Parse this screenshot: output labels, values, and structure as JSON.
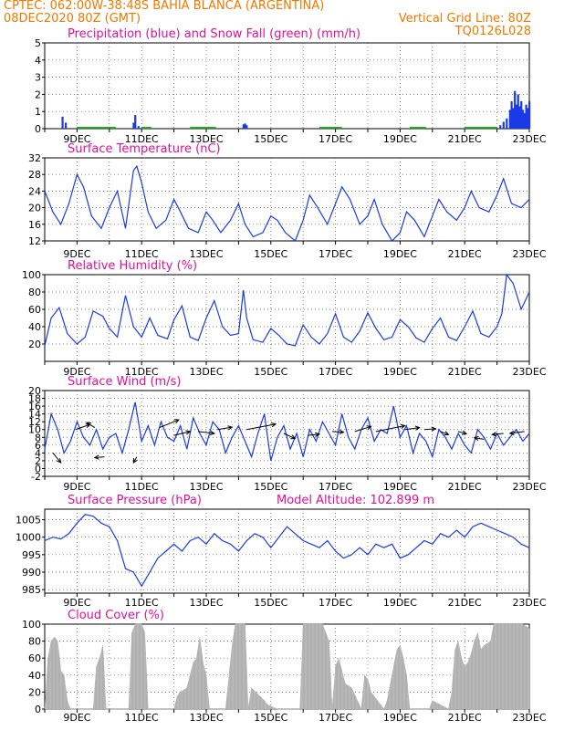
{
  "header": {
    "line1": "CPTEC:  062:00W-38:48S  BAHIA BLANCA (ARGENTINA)",
    "line2": "08DEC2020 80Z (GMT)",
    "grid_note": "Vertical Grid Line: 80Z",
    "code": "TQ0126L028"
  },
  "colors": {
    "orange": "#f07800",
    "magenta": "#e0109a",
    "blue": "#1a3ae8",
    "green": "#19a319",
    "gray": "#b0b0b0",
    "grid": "#555555"
  },
  "chart_data": [
    {
      "type": "bar",
      "title": "Precipitation (blue) and Snow Fall (green) (mm/h)",
      "x_range": [
        8.0,
        23.0
      ],
      "x_ticks": [
        "9DEC",
        "11DEC",
        "13DEC",
        "15DEC",
        "17DEC",
        "19DEC",
        "21DEC",
        "23DEC"
      ],
      "ylim": [
        0,
        5
      ],
      "y_ticks": [
        0,
        1,
        2,
        3,
        4,
        5
      ],
      "series": [
        {
          "name": "Precipitation",
          "color": "blue",
          "x": [
            8.55,
            8.65,
            9.15,
            10.75,
            10.8,
            10.9,
            13.1,
            14.15,
            14.2,
            14.25,
            22.1,
            22.2,
            22.3,
            22.4,
            22.45,
            22.5,
            22.55,
            22.6,
            22.65,
            22.7,
            22.75,
            22.8,
            22.85,
            22.9,
            22.95,
            23.0
          ],
          "values": [
            0.7,
            0.35,
            0.1,
            0.35,
            0.8,
            0.15,
            0.1,
            0.25,
            0.3,
            0.2,
            0.2,
            0.4,
            0.6,
            1.1,
            1.6,
            1.2,
            2.2,
            1.4,
            2.0,
            1.3,
            1.6,
            1.1,
            0.9,
            1.4,
            1.2,
            1.6
          ]
        },
        {
          "name": "Snow Fall",
          "color": "green",
          "x_ranges": [
            [
              9.0,
              10.2
            ],
            [
              11.0,
              11.3
            ],
            [
              12.5,
              13.3
            ],
            [
              16.5,
              17.2
            ],
            [
              19.3,
              19.8
            ],
            [
              21.0,
              22.0
            ]
          ],
          "value": 0.05
        }
      ]
    },
    {
      "type": "line",
      "title": "Surface Temperature (nC)",
      "x_range": [
        8.0,
        23.0
      ],
      "x_ticks": [
        "9DEC",
        "11DEC",
        "13DEC",
        "15DEC",
        "17DEC",
        "19DEC",
        "21DEC",
        "23DEC"
      ],
      "ylim": [
        12,
        32
      ],
      "y_ticks": [
        12,
        16,
        20,
        24,
        28,
        32
      ],
      "series": [
        {
          "name": "Surface Temperature",
          "x": [
            8.0,
            8.25,
            8.5,
            8.75,
            9.0,
            9.2,
            9.45,
            9.75,
            10.0,
            10.25,
            10.5,
            10.75,
            10.85,
            11.0,
            11.2,
            11.45,
            11.75,
            12.0,
            12.2,
            12.45,
            12.75,
            13.0,
            13.2,
            13.45,
            13.75,
            14.0,
            14.2,
            14.45,
            14.75,
            15.0,
            15.2,
            15.45,
            15.75,
            16.0,
            16.2,
            16.45,
            16.75,
            17.0,
            17.2,
            17.45,
            17.75,
            18.0,
            18.2,
            18.45,
            18.75,
            19.0,
            19.2,
            19.45,
            19.75,
            20.0,
            20.2,
            20.45,
            20.75,
            21.0,
            21.2,
            21.45,
            21.75,
            22.0,
            22.2,
            22.45,
            22.75,
            23.0
          ],
          "values": [
            24,
            19,
            16,
            21,
            28,
            25,
            18,
            15,
            20,
            24,
            15,
            29,
            30,
            26,
            19,
            15,
            17,
            22,
            19,
            15,
            14,
            19,
            17,
            14,
            17,
            21,
            16,
            13,
            14,
            18,
            17,
            14,
            12,
            17,
            23,
            20,
            16,
            21,
            25,
            22,
            16,
            18,
            22,
            16,
            12,
            14,
            19,
            17,
            13,
            18,
            22,
            19,
            17,
            20,
            24,
            20,
            19,
            23,
            27,
            21,
            20,
            22
          ]
        }
      ]
    },
    {
      "type": "line",
      "title": "Relative Humidity (%)",
      "x_range": [
        8.0,
        23.0
      ],
      "x_ticks": [
        "9DEC",
        "11DEC",
        "13DEC",
        "15DEC",
        "17DEC",
        "19DEC",
        "21DEC",
        "23DEC"
      ],
      "ylim": [
        0,
        100
      ],
      "y_ticks": [
        20,
        40,
        60,
        80,
        100
      ],
      "series": [
        {
          "name": "Relative Humidity",
          "x": [
            8.0,
            8.2,
            8.45,
            8.7,
            9.0,
            9.25,
            9.5,
            9.8,
            10.0,
            10.25,
            10.5,
            10.75,
            11.0,
            11.25,
            11.5,
            11.8,
            12.0,
            12.25,
            12.5,
            12.75,
            13.0,
            13.25,
            13.5,
            13.75,
            14.0,
            14.15,
            14.25,
            14.45,
            14.75,
            15.0,
            15.25,
            15.5,
            15.75,
            16.0,
            16.25,
            16.5,
            16.75,
            17.0,
            17.25,
            17.5,
            17.75,
            18.0,
            18.25,
            18.5,
            18.75,
            19.0,
            19.25,
            19.5,
            19.75,
            20.0,
            20.25,
            20.5,
            20.75,
            21.0,
            21.25,
            21.5,
            21.75,
            22.0,
            22.15,
            22.3,
            22.5,
            22.75,
            23.0
          ],
          "values": [
            18,
            50,
            62,
            32,
            20,
            28,
            58,
            52,
            38,
            28,
            76,
            40,
            28,
            50,
            30,
            26,
            48,
            64,
            28,
            24,
            50,
            70,
            40,
            30,
            32,
            82,
            50,
            25,
            22,
            38,
            30,
            20,
            18,
            42,
            28,
            20,
            32,
            55,
            28,
            22,
            35,
            56,
            38,
            25,
            28,
            48,
            40,
            27,
            22,
            38,
            50,
            28,
            24,
            40,
            58,
            32,
            28,
            40,
            55,
            100,
            90,
            60,
            80
          ]
        }
      ]
    },
    {
      "type": "line",
      "title": "Surface Wind (m/s)",
      "x_range": [
        8.0,
        23.0
      ],
      "x_ticks": [
        "9DEC",
        "11DEC",
        "13DEC",
        "15DEC",
        "17DEC",
        "19DEC",
        "21DEC",
        "23DEC"
      ],
      "ylim": [
        -2,
        20
      ],
      "y_ticks": [
        -2,
        0,
        2,
        4,
        6,
        8,
        10,
        12,
        14,
        16,
        18,
        20
      ],
      "series": [
        {
          "name": "Surface Wind",
          "x": [
            8.0,
            8.2,
            8.4,
            8.6,
            8.8,
            9.0,
            9.2,
            9.4,
            9.6,
            9.8,
            10.0,
            10.2,
            10.4,
            10.6,
            10.8,
            11.0,
            11.2,
            11.4,
            11.6,
            11.8,
            12.0,
            12.2,
            12.4,
            12.6,
            12.8,
            13.0,
            13.2,
            13.4,
            13.6,
            13.8,
            14.0,
            14.2,
            14.4,
            14.6,
            14.8,
            15.0,
            15.2,
            15.4,
            15.6,
            15.8,
            16.0,
            16.2,
            16.4,
            16.6,
            16.8,
            17.0,
            17.2,
            17.4,
            17.6,
            17.8,
            18.0,
            18.2,
            18.4,
            18.6,
            18.8,
            19.0,
            19.2,
            19.4,
            19.6,
            19.8,
            20.0,
            20.2,
            20.4,
            20.6,
            20.8,
            21.0,
            21.2,
            21.4,
            21.6,
            21.8,
            22.0,
            22.2,
            22.4,
            22.6,
            22.8,
            23.0
          ],
          "values": [
            5,
            14,
            10,
            4,
            7,
            12,
            8,
            6,
            10,
            5,
            8,
            9,
            4,
            10,
            17,
            7,
            11,
            6,
            12,
            8,
            7,
            11,
            5,
            13,
            9,
            6,
            12,
            10,
            4,
            8,
            11,
            7,
            3,
            9,
            14,
            2,
            8,
            11,
            5,
            9,
            3,
            10,
            7,
            12,
            9,
            6,
            14,
            8,
            5,
            10,
            13,
            7,
            10,
            9,
            16,
            8,
            11,
            4,
            9,
            7,
            3,
            10,
            8,
            5,
            9,
            6,
            4,
            10,
            8,
            5,
            9,
            6,
            8,
            10,
            7,
            9
          ]
        }
      ],
      "wind_arrows": [
        {
          "x": 8.25,
          "y": 4,
          "dx": 0.25,
          "dy": -2.5
        },
        {
          "x": 8.95,
          "y": 10,
          "dx": 0.45,
          "dy": 1.3
        },
        {
          "x": 9.55,
          "y": 10.5,
          "dx": -0.25,
          "dy": 1.3
        },
        {
          "x": 9.85,
          "y": 3,
          "dx": -0.3,
          "dy": -0.2
        },
        {
          "x": 10.85,
          "y": 3,
          "dx": -0.1,
          "dy": -1.5
        },
        {
          "x": 11.55,
          "y": 10.5,
          "dx": 0.6,
          "dy": 2.0
        },
        {
          "x": 12.0,
          "y": 8.5,
          "dx": 0.5,
          "dy": 1.0
        },
        {
          "x": 12.75,
          "y": 9.5,
          "dx": 0.5,
          "dy": -0.5
        },
        {
          "x": 13.35,
          "y": 10,
          "dx": 0.45,
          "dy": 0.6
        },
        {
          "x": 14.25,
          "y": 10,
          "dx": 0.9,
          "dy": 1.4
        },
        {
          "x": 15.4,
          "y": 9,
          "dx": 0.35,
          "dy": -1.3
        },
        {
          "x": 16.15,
          "y": 8.5,
          "dx": 0.35,
          "dy": 0.3
        },
        {
          "x": 16.9,
          "y": 9.5,
          "dx": 0.35,
          "dy": -0.2
        },
        {
          "x": 17.6,
          "y": 9.5,
          "dx": 0.5,
          "dy": 1.3
        },
        {
          "x": 18.25,
          "y": 9.5,
          "dx": 0.9,
          "dy": 1.5
        },
        {
          "x": 19.15,
          "y": 10,
          "dx": 0.45,
          "dy": 0.5
        },
        {
          "x": 19.75,
          "y": 10,
          "dx": 0.35,
          "dy": 0.2
        },
        {
          "x": 20.25,
          "y": 9.5,
          "dx": 0.25,
          "dy": -0.8
        },
        {
          "x": 20.8,
          "y": 9.5,
          "dx": 0.25,
          "dy": -0.6
        },
        {
          "x": 21.6,
          "y": 7.5,
          "dx": -0.3,
          "dy": 0.4
        },
        {
          "x": 22.2,
          "y": 9,
          "dx": -0.35,
          "dy": -0.3
        },
        {
          "x": 22.85,
          "y": 9.5,
          "dx": -0.45,
          "dy": -0.5
        }
      ]
    },
    {
      "type": "line",
      "title": "Surface Pressure (hPa)",
      "annotation": "Model Altitude: 102.899  m",
      "x_range": [
        8.0,
        23.0
      ],
      "x_ticks": [
        "9DEC",
        "11DEC",
        "13DEC",
        "15DEC",
        "17DEC",
        "19DEC",
        "21DEC",
        "23DEC"
      ],
      "ylim": [
        984,
        1008
      ],
      "y_ticks": [
        985,
        990,
        995,
        1000,
        1005
      ],
      "series": [
        {
          "name": "Surface Pressure",
          "x": [
            8.0,
            8.25,
            8.5,
            8.75,
            9.0,
            9.25,
            9.5,
            9.75,
            10.0,
            10.25,
            10.5,
            10.75,
            11.0,
            11.25,
            11.5,
            11.75,
            12.0,
            12.25,
            12.5,
            12.75,
            13.0,
            13.25,
            13.5,
            13.75,
            14.0,
            14.25,
            14.5,
            14.75,
            15.0,
            15.25,
            15.5,
            15.75,
            16.0,
            16.25,
            16.5,
            16.75,
            17.0,
            17.25,
            17.5,
            17.75,
            18.0,
            18.25,
            18.5,
            18.75,
            19.0,
            19.25,
            19.5,
            19.75,
            20.0,
            20.25,
            20.5,
            20.75,
            21.0,
            21.25,
            21.5,
            21.75,
            22.0,
            22.25,
            22.5,
            22.75,
            23.0
          ],
          "values": [
            999,
            1000,
            999.5,
            1001,
            1004,
            1006.5,
            1006,
            1004,
            1003,
            999,
            991,
            990,
            986,
            990,
            994,
            996,
            998,
            996,
            999,
            1000,
            998,
            1001,
            999,
            998,
            996,
            999,
            1001,
            1000,
            997,
            1000,
            1003,
            1001,
            999,
            998,
            997,
            999,
            996,
            994,
            995,
            997,
            995,
            998,
            997,
            998,
            994,
            995,
            997,
            999,
            998,
            1001,
            1000,
            1002,
            1000,
            1003,
            1004,
            1003,
            1002,
            1001,
            1000,
            998,
            997
          ]
        }
      ]
    },
    {
      "type": "area",
      "title": "Cloud Cover (%)",
      "x_range": [
        8.0,
        23.0
      ],
      "x_ticks": [
        "9DEC",
        "11DEC",
        "13DEC",
        "15DEC",
        "17DEC",
        "19DEC",
        "21DEC",
        "23DEC"
      ],
      "ylim": [
        0,
        100
      ],
      "y_ticks": [
        0,
        20,
        40,
        60,
        80,
        100
      ],
      "series": [
        {
          "name": "Cloud Cover",
          "color": "gray",
          "x": [
            8.0,
            8.1,
            8.2,
            8.3,
            8.4,
            8.5,
            8.6,
            8.7,
            8.8,
            9.5,
            9.6,
            9.7,
            9.8,
            9.9,
            10.6,
            10.7,
            10.8,
            10.9,
            11.0,
            11.1,
            11.2,
            12.0,
            12.1,
            12.2,
            12.4,
            12.6,
            12.7,
            12.8,
            12.9,
            13.0,
            13.1,
            13.6,
            13.8,
            13.9,
            14.0,
            14.2,
            14.3,
            14.4,
            14.8,
            14.9,
            15.2,
            15.9,
            16.0,
            16.1,
            16.3,
            16.6,
            16.7,
            16.8,
            16.9,
            17.0,
            17.1,
            17.2,
            17.3,
            17.5,
            17.8,
            17.9,
            18.0,
            18.1,
            18.5,
            18.6,
            18.7,
            18.8,
            18.9,
            19.0,
            19.1,
            19.2,
            19.3,
            19.9,
            20.0,
            20.5,
            20.6,
            20.7,
            20.8,
            20.9,
            21.0,
            21.1,
            21.2,
            21.3,
            21.4,
            21.5,
            21.6,
            21.8,
            21.9,
            22.0,
            22.2,
            22.4,
            22.6,
            22.8,
            23.0
          ],
          "values": [
            0,
            60,
            80,
            85,
            80,
            45,
            40,
            10,
            0,
            0,
            50,
            60,
            75,
            0,
            0,
            90,
            100,
            100,
            100,
            90,
            0,
            0,
            15,
            20,
            25,
            55,
            60,
            85,
            55,
            40,
            0,
            0,
            75,
            100,
            100,
            100,
            0,
            25,
            10,
            5,
            0,
            0,
            100,
            100,
            100,
            100,
            90,
            80,
            0,
            50,
            60,
            45,
            30,
            25,
            0,
            40,
            35,
            20,
            0,
            10,
            30,
            50,
            70,
            75,
            60,
            40,
            0,
            0,
            10,
            0,
            20,
            70,
            80,
            60,
            50,
            55,
            65,
            80,
            90,
            70,
            75,
            80,
            100,
            100,
            100,
            100,
            100,
            100,
            95
          ]
        }
      ]
    }
  ]
}
